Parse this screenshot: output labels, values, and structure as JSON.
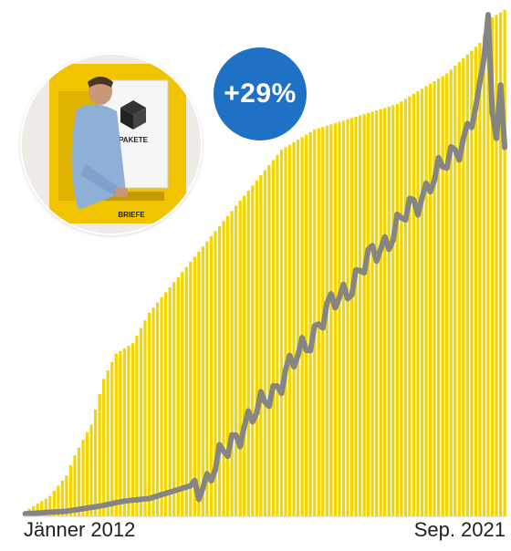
{
  "badge": {
    "text": "+29%"
  },
  "photo": {
    "signs": [
      "PAKETE",
      "BRIEFE"
    ]
  },
  "colors": {
    "bars": "#f2d600",
    "line": "#858585",
    "badge": "#1f71c6"
  },
  "axis": {
    "start_label": "Jänner 2012",
    "end_label": "Sep. 2021"
  },
  "chart_data": {
    "type": "bar",
    "title": "",
    "xlabel": "",
    "ylabel": "",
    "grid": false,
    "start_month": "Jänner 2012",
    "end_month": "Sep. 2021",
    "change_label": "+29%",
    "ylim": [
      0,
      100
    ],
    "bars_description": "cumulative total per month (monthly bars)",
    "bar_anchors": [
      [
        0,
        1
      ],
      [
        6,
        4
      ],
      [
        10,
        8
      ],
      [
        12,
        12
      ],
      [
        16,
        18
      ],
      [
        19,
        27
      ],
      [
        22,
        32
      ],
      [
        26,
        34
      ],
      [
        30,
        40
      ],
      [
        34,
        44
      ],
      [
        38,
        48
      ],
      [
        42,
        52
      ],
      [
        46,
        56
      ],
      [
        50,
        60
      ],
      [
        54,
        64
      ],
      [
        58,
        68
      ],
      [
        62,
        72
      ],
      [
        66,
        74
      ],
      [
        70,
        76
      ],
      [
        74,
        77
      ],
      [
        78,
        78
      ],
      [
        82,
        79
      ],
      [
        86,
        80
      ],
      [
        90,
        81
      ],
      [
        94,
        83
      ],
      [
        98,
        85
      ],
      [
        102,
        87
      ],
      [
        106,
        90
      ],
      [
        110,
        93
      ],
      [
        113,
        98
      ],
      [
        116,
        99.5
      ]
    ],
    "line_description": "monthly volume",
    "line_anchors": [
      [
        0,
        0.5
      ],
      [
        10,
        1
      ],
      [
        18,
        2
      ],
      [
        24,
        3
      ],
      [
        30,
        3.5
      ],
      [
        36,
        5
      ],
      [
        40,
        6
      ],
      [
        44,
        7
      ],
      [
        48,
        12
      ],
      [
        50,
        15
      ],
      [
        53,
        18
      ],
      [
        56,
        20
      ],
      [
        59,
        24
      ],
      [
        62,
        27
      ],
      [
        65,
        30
      ],
      [
        68,
        34
      ],
      [
        71,
        38
      ],
      [
        74,
        41
      ],
      [
        77,
        44
      ],
      [
        80,
        47
      ],
      [
        83,
        50
      ],
      [
        86,
        53
      ],
      [
        89,
        56
      ],
      [
        92,
        59
      ],
      [
        95,
        62
      ],
      [
        98,
        66
      ],
      [
        101,
        68
      ],
      [
        104,
        72
      ],
      [
        107,
        76
      ],
      [
        110,
        82
      ],
      [
        111,
        90
      ],
      [
        112,
        100
      ],
      [
        113,
        78
      ],
      [
        114,
        75
      ],
      [
        115,
        88
      ],
      [
        116,
        72
      ]
    ]
  }
}
